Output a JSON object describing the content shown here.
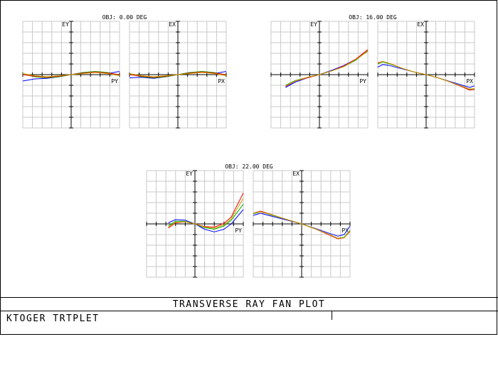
{
  "window": {
    "title": "TRANSVERSE RAY FAN PLOT",
    "lens_name": "KTOGER TRTPLET",
    "info_right": ""
  },
  "colors": {
    "frame": "#000000",
    "grid": "#c8c8c8",
    "axis": "#000000",
    "series": [
      "#0000ff",
      "#00aa00",
      "#ff0000",
      "#c8a000"
    ]
  },
  "chart_data": [
    {
      "type": "line",
      "title": "OBJ: 0.00 DEG",
      "panels": [
        {
          "ylabel": "EY",
          "xlabel": "PY",
          "xlim": [
            -1,
            1
          ],
          "ylim": [
            -1,
            1
          ],
          "grid": true,
          "series": [
            {
              "x": [
                -1,
                -0.75,
                -0.5,
                -0.25,
                0,
                0.25,
                0.5,
                0.75,
                1
              ],
              "values": [
                -0.12,
                -0.08,
                -0.07,
                -0.04,
                0,
                0.04,
                0.05,
                0.02,
                0.06
              ]
            },
            {
              "x": [
                -1,
                -0.75,
                -0.5,
                -0.25,
                0,
                0.25,
                0.5,
                0.75,
                1
              ],
              "values": [
                0.01,
                -0.04,
                -0.06,
                -0.04,
                0,
                0.04,
                0.06,
                0.04,
                -0.01
              ]
            },
            {
              "x": [
                -1,
                -0.75,
                -0.5,
                -0.25,
                0,
                0.25,
                0.5,
                0.75,
                1
              ],
              "values": [
                0.0,
                -0.03,
                -0.05,
                -0.03,
                0,
                0.03,
                0.05,
                0.03,
                0.0
              ]
            },
            {
              "x": [
                -1,
                -0.75,
                -0.5,
                -0.25,
                0,
                0.25,
                0.5,
                0.75,
                1
              ],
              "values": [
                0.02,
                -0.02,
                -0.04,
                -0.02,
                0,
                0.02,
                0.04,
                0.02,
                -0.02
              ]
            }
          ]
        },
        {
          "ylabel": "EX",
          "xlabel": "PX",
          "xlim": [
            -1,
            1
          ],
          "ylim": [
            -1,
            1
          ],
          "grid": true,
          "series": [
            {
              "x": [
                -1,
                -0.75,
                -0.5,
                -0.25,
                0,
                0.25,
                0.5,
                0.75,
                1
              ],
              "values": [
                -0.06,
                -0.05,
                -0.07,
                -0.04,
                0,
                0.04,
                0.05,
                0.02,
                0.06
              ]
            },
            {
              "x": [
                -1,
                -0.75,
                -0.5,
                -0.25,
                0,
                0.25,
                0.5,
                0.75,
                1
              ],
              "values": [
                0.01,
                -0.04,
                -0.06,
                -0.04,
                0,
                0.04,
                0.06,
                0.04,
                -0.01
              ]
            },
            {
              "x": [
                -1,
                -0.75,
                -0.5,
                -0.25,
                0,
                0.25,
                0.5,
                0.75,
                1
              ],
              "values": [
                0.0,
                -0.03,
                -0.05,
                -0.03,
                0,
                0.03,
                0.05,
                0.03,
                0.0
              ]
            },
            {
              "x": [
                -1,
                -0.75,
                -0.5,
                -0.25,
                0,
                0.25,
                0.5,
                0.75,
                1
              ],
              "values": [
                0.02,
                -0.02,
                -0.04,
                -0.02,
                0,
                0.02,
                0.04,
                0.02,
                -0.02
              ]
            }
          ]
        }
      ]
    },
    {
      "type": "line",
      "title": "OBJ: 16.00 DEG",
      "panels": [
        {
          "ylabel": "EY",
          "xlabel": "PY",
          "xlim": [
            -1,
            1
          ],
          "ylim": [
            -1,
            1
          ],
          "grid": true,
          "series": [
            {
              "x": [
                -0.7,
                -0.5,
                -0.25,
                0,
                0.25,
                0.5,
                0.75,
                1
              ],
              "values": [
                -0.24,
                -0.14,
                -0.06,
                0,
                0.08,
                0.17,
                0.29,
                0.44
              ]
            },
            {
              "x": [
                -0.7,
                -0.5,
                -0.25,
                0,
                0.25,
                0.5,
                0.75,
                1
              ],
              "values": [
                -0.2,
                -0.11,
                -0.05,
                0,
                0.07,
                0.15,
                0.27,
                0.45
              ]
            },
            {
              "x": [
                -0.7,
                -0.5,
                -0.25,
                0,
                0.25,
                0.5,
                0.75,
                1
              ],
              "values": [
                -0.22,
                -0.12,
                -0.06,
                0,
                0.07,
                0.16,
                0.29,
                0.47
              ]
            },
            {
              "x": [
                -0.7,
                -0.5,
                -0.25,
                0,
                0.25,
                0.5,
                0.75,
                1
              ],
              "values": [
                -0.21,
                -0.12,
                -0.05,
                0,
                0.07,
                0.15,
                0.28,
                0.44
              ]
            }
          ]
        },
        {
          "ylabel": "EX",
          "xlabel": "PX",
          "xlim": [
            -1,
            1
          ],
          "ylim": [
            -1,
            1
          ],
          "grid": true,
          "series": [
            {
              "x": [
                -1,
                -0.9,
                -0.75,
                -0.5,
                -0.25,
                0,
                0.25,
                0.5,
                0.75,
                0.9,
                1
              ],
              "values": [
                0.14,
                0.19,
                0.17,
                0.11,
                0.05,
                0,
                -0.06,
                -0.13,
                -0.2,
                -0.24,
                -0.21
              ]
            },
            {
              "x": [
                -1,
                -0.9,
                -0.75,
                -0.5,
                -0.25,
                0,
                0.25,
                0.5,
                0.75,
                0.9,
                1
              ],
              "values": [
                0.2,
                0.24,
                0.2,
                0.12,
                0.05,
                0,
                -0.06,
                -0.14,
                -0.23,
                -0.28,
                -0.26
              ]
            },
            {
              "x": [
                -1,
                -0.9,
                -0.75,
                -0.5,
                -0.25,
                0,
                0.25,
                0.5,
                0.75,
                0.9,
                1
              ],
              "values": [
                0.22,
                0.25,
                0.21,
                0.12,
                0.05,
                0,
                -0.06,
                -0.14,
                -0.23,
                -0.29,
                -0.28
              ]
            },
            {
              "x": [
                -1,
                -0.9,
                -0.75,
                -0.5,
                -0.25,
                0,
                0.25,
                0.5,
                0.75,
                0.9,
                1
              ],
              "values": [
                0.21,
                0.25,
                0.21,
                0.12,
                0.05,
                0,
                -0.06,
                -0.14,
                -0.22,
                -0.27,
                -0.26
              ]
            }
          ]
        }
      ]
    },
    {
      "type": "line",
      "title": "OBJ: 22.00 DEG",
      "panels": [
        {
          "ylabel": "EY",
          "xlabel": "PY",
          "xlim": [
            -1,
            1
          ],
          "ylim": [
            -1,
            1
          ],
          "grid": true,
          "series": [
            {
              "x": [
                -0.55,
                -0.4,
                -0.2,
                0,
                0.2,
                0.4,
                0.6,
                0.75,
                1
              ],
              "values": [
                0.02,
                0.08,
                0.07,
                0,
                -0.1,
                -0.15,
                -0.1,
                0,
                0.27
              ]
            },
            {
              "x": [
                -0.55,
                -0.4,
                -0.2,
                0,
                0.2,
                0.4,
                0.6,
                0.75,
                1
              ],
              "values": [
                -0.04,
                0.05,
                0.05,
                0,
                -0.07,
                -0.1,
                -0.04,
                0.07,
                0.37
              ]
            },
            {
              "x": [
                -0.55,
                -0.4,
                -0.2,
                0,
                0.2,
                0.4,
                0.6,
                0.75,
                1
              ],
              "values": [
                -0.08,
                0.02,
                0.04,
                0,
                -0.05,
                -0.06,
                0.01,
                0.13,
                0.58
              ]
            },
            {
              "x": [
                -0.55,
                -0.4,
                -0.2,
                0,
                0.2,
                0.4,
                0.6,
                0.75,
                1
              ],
              "values": [
                -0.06,
                0.03,
                0.04,
                0,
                -0.06,
                -0.08,
                -0.02,
                0.1,
                0.48
              ]
            }
          ]
        },
        {
          "ylabel": "EX",
          "xlabel": "PX",
          "xlim": [
            -1,
            1
          ],
          "ylim": [
            -1,
            1
          ],
          "grid": true,
          "series": [
            {
              "x": [
                -1,
                -0.85,
                -0.6,
                -0.3,
                0,
                0.3,
                0.55,
                0.75,
                0.88,
                1
              ],
              "values": [
                0.16,
                0.2,
                0.14,
                0.07,
                0,
                -0.09,
                -0.17,
                -0.23,
                -0.2,
                -0.04
              ]
            },
            {
              "x": [
                -1,
                -0.85,
                -0.6,
                -0.3,
                0,
                0.3,
                0.55,
                0.75,
                0.88,
                1
              ],
              "values": [
                0.19,
                0.23,
                0.16,
                0.08,
                0,
                -0.1,
                -0.19,
                -0.27,
                -0.25,
                -0.12
              ]
            },
            {
              "x": [
                -1,
                -0.85,
                -0.6,
                -0.3,
                0,
                0.3,
                0.55,
                0.75,
                0.88,
                1
              ],
              "values": [
                0.2,
                0.24,
                0.17,
                0.08,
                0,
                -0.1,
                -0.2,
                -0.28,
                -0.26,
                -0.14
              ]
            },
            {
              "x": [
                -1,
                -0.85,
                -0.6,
                -0.3,
                0,
                0.3,
                0.55,
                0.75,
                0.88,
                1
              ],
              "values": [
                0.2,
                0.23,
                0.17,
                0.08,
                0,
                -0.1,
                -0.19,
                -0.27,
                -0.26,
                -0.13
              ]
            }
          ]
        }
      ]
    }
  ]
}
